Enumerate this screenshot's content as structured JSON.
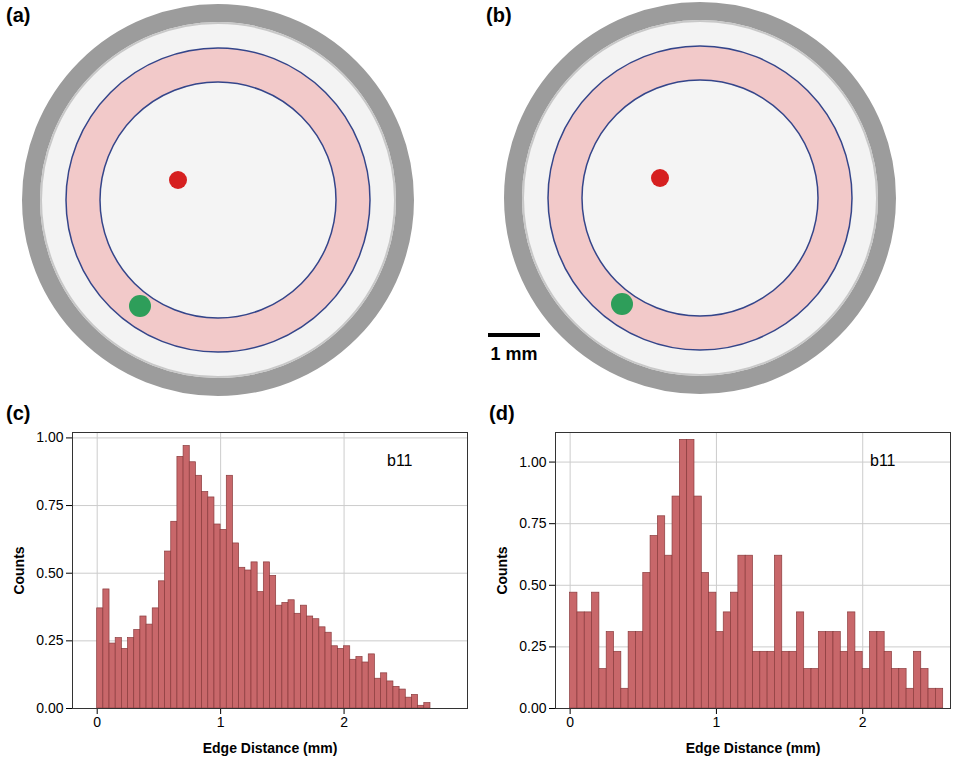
{
  "figure": {
    "panels": [
      {
        "label": "(a)"
      },
      {
        "label": "(b)"
      }
    ],
    "scale_bar": "1 mm"
  },
  "chart_data": [
    {
      "type": "histogram",
      "panel": "(c)",
      "annotations": [
        "b11"
      ],
      "xlabel": "Edge Distance (mm)",
      "ylabel": "Counts",
      "color": "#c8676a",
      "grid": true,
      "bins": [
        0,
        0.05,
        0.1,
        0.15,
        0.2,
        0.25,
        0.3,
        0.35,
        0.4,
        0.45,
        0.5,
        0.55,
        0.6,
        0.65,
        0.7,
        0.75,
        0.8,
        0.85,
        0.9,
        0.95,
        1,
        1.05,
        1.1,
        1.15,
        1.2,
        1.25,
        1.3,
        1.35,
        1.4,
        1.45,
        1.5,
        1.55,
        1.6,
        1.65,
        1.7,
        1.75,
        1.8,
        1.85,
        1.9,
        1.95,
        2,
        2.05,
        2.1,
        2.15,
        2.2,
        2.25,
        2.3,
        2.35,
        2.4,
        2.45,
        2.5,
        2.55,
        2.6,
        2.65,
        2.7
      ],
      "values": [
        0.37,
        0.44,
        0.24,
        0.26,
        0.22,
        0.26,
        0.29,
        0.34,
        0.31,
        0.37,
        0.47,
        0.58,
        0.69,
        0.93,
        0.97,
        0.91,
        0.86,
        0.8,
        0.78,
        0.68,
        0.66,
        0.86,
        0.61,
        0.52,
        0.51,
        0.54,
        0.43,
        0.54,
        0.49,
        0.38,
        0.39,
        0.4,
        0.35,
        0.38,
        0.34,
        0.33,
        0.3,
        0.28,
        0.23,
        0.22,
        0.23,
        0.18,
        0.19,
        0.17,
        0.2,
        0.11,
        0.13,
        0.1,
        0.08,
        0.07,
        0.04,
        0.05,
        0.01,
        0.02
      ],
      "xlim": [
        -0.2,
        3.0
      ],
      "xticks": [
        0,
        1,
        2
      ],
      "ylim": [
        0,
        1.02
      ],
      "yticks": [
        {
          "value": 0,
          "label": "0.00"
        },
        {
          "value": 0.25,
          "label": "0.25"
        },
        {
          "value": 0.5,
          "label": "0.50"
        },
        {
          "value": 0.75,
          "label": "0.75"
        },
        {
          "value": 1,
          "label": "1.00"
        }
      ]
    },
    {
      "type": "histogram",
      "panel": "(d)",
      "annotations": [
        "b11"
      ],
      "xlabel": "Edge Distance (mm)",
      "ylabel": "Counts",
      "color": "#c8676a",
      "grid": true,
      "bins": [
        0,
        0.05,
        0.1,
        0.15,
        0.2,
        0.25,
        0.3,
        0.35,
        0.4,
        0.45,
        0.5,
        0.55,
        0.6,
        0.65,
        0.7,
        0.75,
        0.8,
        0.85,
        0.9,
        0.95,
        1,
        1.05,
        1.1,
        1.15,
        1.2,
        1.25,
        1.3,
        1.35,
        1.4,
        1.45,
        1.5,
        1.55,
        1.6,
        1.65,
        1.7,
        1.75,
        1.8,
        1.85,
        1.9,
        1.95,
        2,
        2.05,
        2.1,
        2.15,
        2.2,
        2.25,
        2.3,
        2.35,
        2.4,
        2.45,
        2.5,
        2.55
      ],
      "values": [
        0.47,
        0.39,
        0.39,
        0.47,
        0.16,
        0.31,
        0.23,
        0.08,
        0.31,
        0.31,
        0.55,
        0.7,
        0.78,
        0.62,
        0.86,
        1.09,
        1.09,
        0.86,
        0.55,
        0.47,
        0.31,
        0.39,
        0.47,
        0.62,
        0.62,
        0.23,
        0.23,
        0.23,
        0.62,
        0.23,
        0.23,
        0.39,
        0.16,
        0.16,
        0.31,
        0.31,
        0.31,
        0.23,
        0.39,
        0.23,
        0.16,
        0.31,
        0.31,
        0.23,
        0.16,
        0.16,
        0.08,
        0.23,
        0.16,
        0.08,
        0.08
      ],
      "xlim": [
        -0.1,
        2.6
      ],
      "xticks": [
        0,
        1,
        2
      ],
      "ylim": [
        0,
        1.12
      ],
      "yticks": [
        {
          "value": 0,
          "label": "0.00"
        },
        {
          "value": 0.25,
          "label": "0.25"
        },
        {
          "value": 0.5,
          "label": "0.50"
        },
        {
          "value": 0.75,
          "label": "0.75"
        },
        {
          "value": 1,
          "label": "1.00"
        }
      ]
    }
  ]
}
